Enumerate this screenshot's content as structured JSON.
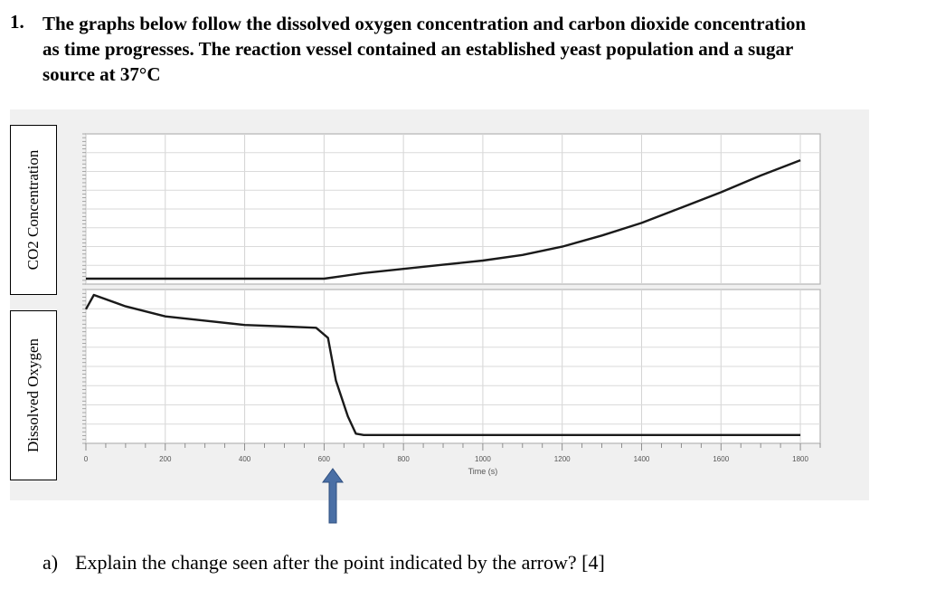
{
  "question": {
    "number": "1.",
    "lines": [
      "The graphs below follow the dissolved oxygen concentration and carbon dioxide concentration",
      "as time progresses. The reaction vessel contained an established yeast population and a sugar",
      "source at 37°C"
    ]
  },
  "figure": {
    "top_ylabel": "CO2 Concentration",
    "bottom_ylabel": "Dissolved Oxygen",
    "x_axis_label": "Time (s)",
    "x_ticks": [
      "0",
      "200",
      "400",
      "600",
      "800",
      "1000",
      "1200",
      "1400",
      "1600",
      "1800"
    ],
    "arrow_marker_time": 650,
    "arrow_color": "#4a6fa5"
  },
  "chart_data": [
    {
      "type": "line",
      "ylabel": "CO2 Concentration",
      "xlabel": "Time (s)",
      "xlim": [
        0,
        1850
      ],
      "ylim": [
        0,
        1
      ],
      "grid": true,
      "series": [
        {
          "x": [
            0,
            200,
            400,
            600,
            700,
            800,
            900,
            1000,
            1100,
            1200,
            1300,
            1400,
            1500,
            1600,
            1700,
            1800
          ],
          "y": [
            0.0,
            0.0,
            0.0,
            0.0,
            0.04,
            0.07,
            0.1,
            0.13,
            0.17,
            0.23,
            0.31,
            0.4,
            0.51,
            0.62,
            0.74,
            0.85
          ]
        }
      ]
    },
    {
      "type": "line",
      "ylabel": "Dissolved Oxygen",
      "xlabel": "Time (s)",
      "xlim": [
        0,
        1850
      ],
      "ylim": [
        0,
        1
      ],
      "grid": true,
      "series": [
        {
          "x": [
            0,
            20,
            100,
            200,
            300,
            400,
            500,
            580,
            610,
            630,
            660,
            680,
            700,
            800,
            1000,
            1200,
            1400,
            1600,
            1800
          ],
          "y": [
            0.9,
            1.0,
            0.92,
            0.85,
            0.82,
            0.79,
            0.78,
            0.77,
            0.7,
            0.4,
            0.15,
            0.03,
            0.02,
            0.02,
            0.02,
            0.02,
            0.02,
            0.02,
            0.02
          ]
        }
      ]
    }
  ],
  "part_a": {
    "label": "a)",
    "text": "Explain the change seen after the point indicated by the arrow?  [4]"
  }
}
